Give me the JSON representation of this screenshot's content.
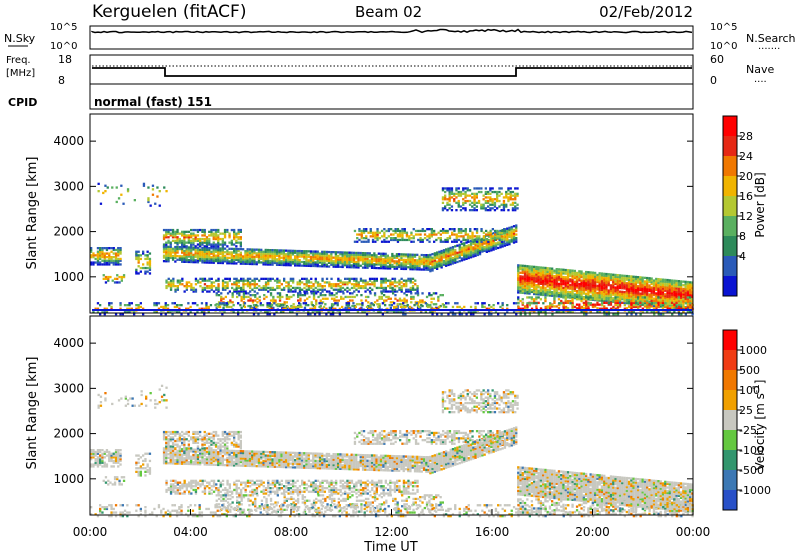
{
  "header": {
    "station": "Kerguelen (fitACF)",
    "beam": "Beam 02",
    "date": "02/Feb/2012"
  },
  "strip_panels": {
    "nsky": {
      "left_label": "N.Sky",
      "left_ticks": [
        "10^5",
        "10^0"
      ],
      "right_ticks": [
        "10^5",
        "10^0"
      ],
      "right_label": "N.Search",
      "right_marker": "......."
    },
    "freq": {
      "left_label_line1": "Freq.",
      "left_label_line2": "[MHz]",
      "left_ticks": [
        "18",
        "8"
      ],
      "right_ticks": [
        "60",
        "0"
      ],
      "right_label": "Nave",
      "right_marker": "...."
    },
    "cpid": {
      "label": "CPID",
      "value": "normal (fast) 151"
    }
  },
  "chart_data": [
    {
      "type": "heatmap",
      "name": "power",
      "ylabel": "Slant Range [km]",
      "ylim": [
        200,
        4600
      ],
      "yticks": [
        "1000",
        "2000",
        "3000",
        "4000"
      ],
      "xlim": [
        "00:00",
        "24:00"
      ],
      "colorbar": {
        "label": "Power [dB]",
        "ticks": [
          "28",
          "24",
          "20",
          "16",
          "12",
          "8",
          "4"
        ],
        "colors": [
          "#0a14d2",
          "#2a5ab8",
          "#2d8a5a",
          "#5ab060",
          "#b4c832",
          "#f0b400",
          "#f07800",
          "#e62814",
          "#ff0000"
        ]
      }
    },
    {
      "type": "heatmap",
      "name": "velocity",
      "ylabel": "Slant Range [km]",
      "ylim": [
        200,
        4600
      ],
      "yticks": [
        "1000",
        "2000",
        "3000",
        "4000"
      ],
      "xlabel": "Time UT",
      "xticks": [
        "00:00",
        "04:00",
        "08:00",
        "12:00",
        "16:00",
        "20:00",
        "00:00"
      ],
      "colorbar": {
        "label": "Velocity",
        "unit_label": "[m s",
        "unit_exp": "-1",
        "unit_close": "]",
        "ticks": [
          "1000",
          "500",
          "100",
          "25",
          "-25",
          "-100",
          "-500",
          "-1000"
        ],
        "colors": [
          "#2850c8",
          "#3c78b4",
          "#32966e",
          "#64c840",
          "#c8c8c0",
          "#f0a000",
          "#f07800",
          "#f03c14",
          "#ff0000"
        ]
      }
    }
  ]
}
